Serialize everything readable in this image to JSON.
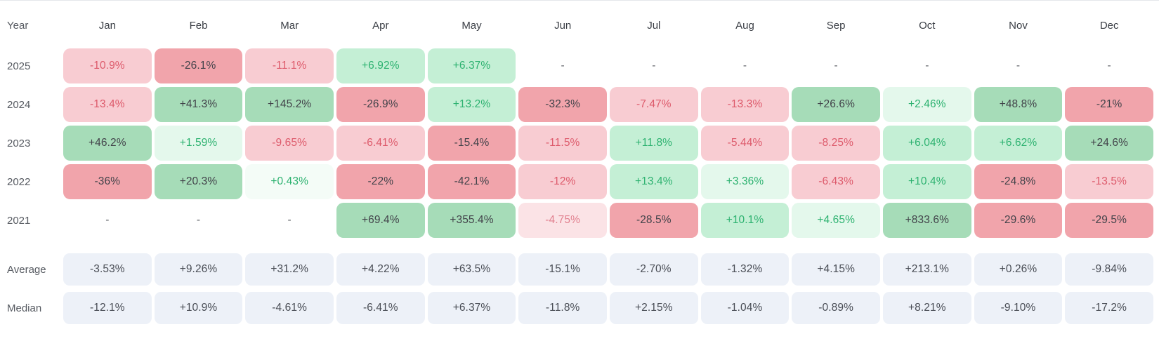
{
  "colors": {
    "page_bg": "#ffffff",
    "top_rule": "#e4e7eb",
    "header_text": "#3a3e45",
    "row_label_text": "#565a61",
    "tones": {
      "strong_red": {
        "bg": "#f1a4ab",
        "text": "#42434a"
      },
      "red": {
        "bg": "#f8ccd2",
        "text": "#dd5a6b"
      },
      "faint_red": {
        "bg": "#fbe3e6",
        "text": "#e17f8e"
      },
      "strong_green": {
        "bg": "#a6dcb8",
        "text": "#42434a"
      },
      "green": {
        "bg": "#c4efd5",
        "text": "#2db270"
      },
      "faint_green": {
        "bg": "#e4f8ec",
        "text": "#2db270"
      },
      "trace_green": {
        "bg": "#f4fcf7",
        "text": "#2db270"
      },
      "neutral": {
        "bg": "#edf1f8",
        "text": "#494d55"
      },
      "none": {
        "bg": "transparent",
        "text": "#63666b"
      }
    }
  },
  "table": {
    "columns": [
      "Year",
      "Jan",
      "Feb",
      "Mar",
      "Apr",
      "May",
      "Jun",
      "Jul",
      "Aug",
      "Sep",
      "Oct",
      "Nov",
      "Dec"
    ],
    "rows": [
      {
        "label": "2025",
        "type": "year",
        "cells": [
          {
            "v": "-10.9%",
            "tone": "red"
          },
          {
            "v": "-26.1%",
            "tone": "strong_red"
          },
          {
            "v": "-11.1%",
            "tone": "red"
          },
          {
            "v": "+6.92%",
            "tone": "green"
          },
          {
            "v": "+6.37%",
            "tone": "green"
          },
          {
            "v": "-",
            "tone": "none"
          },
          {
            "v": "-",
            "tone": "none"
          },
          {
            "v": "-",
            "tone": "none"
          },
          {
            "v": "-",
            "tone": "none"
          },
          {
            "v": "-",
            "tone": "none"
          },
          {
            "v": "-",
            "tone": "none"
          },
          {
            "v": "-",
            "tone": "none"
          }
        ]
      },
      {
        "label": "2024",
        "type": "year",
        "cells": [
          {
            "v": "-13.4%",
            "tone": "red"
          },
          {
            "v": "+41.3%",
            "tone": "strong_green"
          },
          {
            "v": "+145.2%",
            "tone": "strong_green"
          },
          {
            "v": "-26.9%",
            "tone": "strong_red"
          },
          {
            "v": "+13.2%",
            "tone": "green"
          },
          {
            "v": "-32.3%",
            "tone": "strong_red"
          },
          {
            "v": "-7.47%",
            "tone": "red"
          },
          {
            "v": "-13.3%",
            "tone": "red"
          },
          {
            "v": "+26.6%",
            "tone": "strong_green"
          },
          {
            "v": "+2.46%",
            "tone": "faint_green"
          },
          {
            "v": "+48.8%",
            "tone": "strong_green"
          },
          {
            "v": "-21%",
            "tone": "strong_red"
          }
        ]
      },
      {
        "label": "2023",
        "type": "year",
        "cells": [
          {
            "v": "+46.2%",
            "tone": "strong_green"
          },
          {
            "v": "+1.59%",
            "tone": "faint_green"
          },
          {
            "v": "-9.65%",
            "tone": "red"
          },
          {
            "v": "-6.41%",
            "tone": "red"
          },
          {
            "v": "-15.4%",
            "tone": "strong_red"
          },
          {
            "v": "-11.5%",
            "tone": "red"
          },
          {
            "v": "+11.8%",
            "tone": "green"
          },
          {
            "v": "-5.44%",
            "tone": "red"
          },
          {
            "v": "-8.25%",
            "tone": "red"
          },
          {
            "v": "+6.04%",
            "tone": "green"
          },
          {
            "v": "+6.62%",
            "tone": "green"
          },
          {
            "v": "+24.6%",
            "tone": "strong_green"
          }
        ]
      },
      {
        "label": "2022",
        "type": "year",
        "cells": [
          {
            "v": "-36%",
            "tone": "strong_red"
          },
          {
            "v": "+20.3%",
            "tone": "strong_green"
          },
          {
            "v": "+0.43%",
            "tone": "trace_green"
          },
          {
            "v": "-22%",
            "tone": "strong_red"
          },
          {
            "v": "-42.1%",
            "tone": "strong_red"
          },
          {
            "v": "-12%",
            "tone": "red"
          },
          {
            "v": "+13.4%",
            "tone": "green"
          },
          {
            "v": "+3.36%",
            "tone": "faint_green"
          },
          {
            "v": "-6.43%",
            "tone": "red"
          },
          {
            "v": "+10.4%",
            "tone": "green"
          },
          {
            "v": "-24.8%",
            "tone": "strong_red"
          },
          {
            "v": "-13.5%",
            "tone": "red"
          }
        ]
      },
      {
        "label": "2021",
        "type": "year",
        "cells": [
          {
            "v": "-",
            "tone": "none"
          },
          {
            "v": "-",
            "tone": "none"
          },
          {
            "v": "-",
            "tone": "none"
          },
          {
            "v": "+69.4%",
            "tone": "strong_green"
          },
          {
            "v": "+355.4%",
            "tone": "strong_green"
          },
          {
            "v": "-4.75%",
            "tone": "faint_red"
          },
          {
            "v": "-28.5%",
            "tone": "strong_red"
          },
          {
            "v": "+10.1%",
            "tone": "green"
          },
          {
            "v": "+4.65%",
            "tone": "faint_green"
          },
          {
            "v": "+833.6%",
            "tone": "strong_green"
          },
          {
            "v": "-29.6%",
            "tone": "strong_red"
          },
          {
            "v": "-29.5%",
            "tone": "strong_red"
          }
        ]
      },
      {
        "label": "Average",
        "type": "summary",
        "gap_before": true,
        "cells": [
          {
            "v": "-3.53%",
            "tone": "neutral"
          },
          {
            "v": "+9.26%",
            "tone": "neutral"
          },
          {
            "v": "+31.2%",
            "tone": "neutral"
          },
          {
            "v": "+4.22%",
            "tone": "neutral"
          },
          {
            "v": "+63.5%",
            "tone": "neutral"
          },
          {
            "v": "-15.1%",
            "tone": "neutral"
          },
          {
            "v": "-2.70%",
            "tone": "neutral"
          },
          {
            "v": "-1.32%",
            "tone": "neutral"
          },
          {
            "v": "+4.15%",
            "tone": "neutral"
          },
          {
            "v": "+213.1%",
            "tone": "neutral"
          },
          {
            "v": "+0.26%",
            "tone": "neutral"
          },
          {
            "v": "-9.84%",
            "tone": "neutral"
          }
        ]
      },
      {
        "label": "Median",
        "type": "summary",
        "cells": [
          {
            "v": "-12.1%",
            "tone": "neutral"
          },
          {
            "v": "+10.9%",
            "tone": "neutral"
          },
          {
            "v": "-4.61%",
            "tone": "neutral"
          },
          {
            "v": "-6.41%",
            "tone": "neutral"
          },
          {
            "v": "+6.37%",
            "tone": "neutral"
          },
          {
            "v": "-11.8%",
            "tone": "neutral"
          },
          {
            "v": "+2.15%",
            "tone": "neutral"
          },
          {
            "v": "-1.04%",
            "tone": "neutral"
          },
          {
            "v": "-0.89%",
            "tone": "neutral"
          },
          {
            "v": "+8.21%",
            "tone": "neutral"
          },
          {
            "v": "-9.10%",
            "tone": "neutral"
          },
          {
            "v": "-17.2%",
            "tone": "neutral"
          }
        ]
      }
    ]
  },
  "chart_data": {
    "type": "heatmap",
    "x_labels": [
      "Jan",
      "Feb",
      "Mar",
      "Apr",
      "May",
      "Jun",
      "Jul",
      "Aug",
      "Sep",
      "Oct",
      "Nov",
      "Dec"
    ],
    "y_labels": [
      "2025",
      "2024",
      "2023",
      "2022",
      "2021",
      "Average",
      "Median"
    ],
    "unit": "%",
    "series": [
      {
        "name": "2025",
        "values": [
          -10.9,
          -26.1,
          -11.1,
          6.92,
          6.37,
          null,
          null,
          null,
          null,
          null,
          null,
          null
        ]
      },
      {
        "name": "2024",
        "values": [
          -13.4,
          41.3,
          145.2,
          -26.9,
          13.2,
          -32.3,
          -7.47,
          -13.3,
          26.6,
          2.46,
          48.8,
          -21
        ]
      },
      {
        "name": "2023",
        "values": [
          46.2,
          1.59,
          -9.65,
          -6.41,
          -15.4,
          -11.5,
          11.8,
          -5.44,
          -8.25,
          6.04,
          6.62,
          24.6
        ]
      },
      {
        "name": "2022",
        "values": [
          -36,
          20.3,
          0.43,
          -22,
          -42.1,
          -12,
          13.4,
          3.36,
          -6.43,
          10.4,
          -24.8,
          -13.5
        ]
      },
      {
        "name": "2021",
        "values": [
          null,
          null,
          null,
          69.4,
          355.4,
          -4.75,
          -28.5,
          10.1,
          4.65,
          833.6,
          -29.6,
          -29.5
        ]
      },
      {
        "name": "Average",
        "values": [
          -3.53,
          9.26,
          31.2,
          4.22,
          63.5,
          -15.1,
          -2.7,
          -1.32,
          4.15,
          213.1,
          0.26,
          -9.84
        ]
      },
      {
        "name": "Median",
        "values": [
          -12.1,
          10.9,
          -4.61,
          -6.41,
          6.37,
          -11.8,
          2.15,
          -1.04,
          -0.89,
          8.21,
          -9.1,
          -17.2
        ]
      }
    ],
    "layout": {
      "grid": false,
      "legend": "none",
      "negative_color": "red",
      "positive_color": "green",
      "intensity": "by magnitude"
    }
  }
}
